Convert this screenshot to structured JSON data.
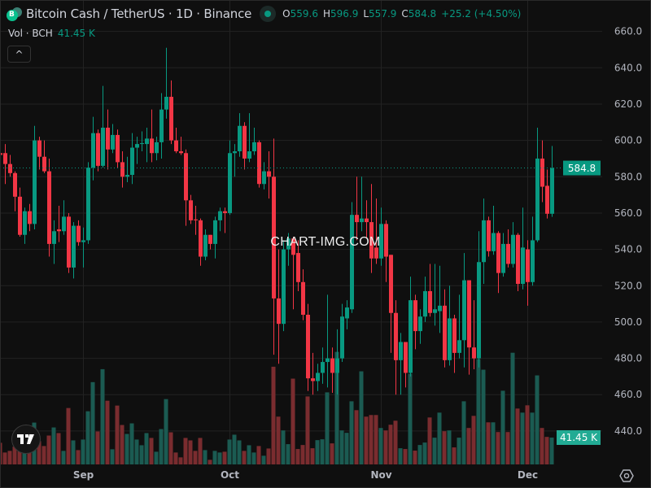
{
  "header": {
    "symbol_title": "Bitcoin Cash / TetherUS · 1D · Binance",
    "o_label": "O",
    "o": "559.6",
    "h_label": "H",
    "h": "596.9",
    "l_label": "L",
    "l": "557.9",
    "c_label": "C",
    "c": "584.8",
    "change": "+25.2 (+4.50%)",
    "volume_label": "Vol · BCH",
    "volume_value": "41.45 K",
    "collapse_icon": "^"
  },
  "watermark": "CHART-IMG.COM",
  "logo_text": "TV",
  "colors": {
    "background": "#0f0f0f",
    "up": "#089981",
    "down": "#f23645",
    "volume_up": "#1b5b52",
    "volume_down": "#7a2c2f",
    "grid": "#222222",
    "axis_text": "#b2b5be"
  },
  "chart_data": {
    "type": "candlestick",
    "interval": "1D",
    "ylim": [
      421.6,
      677.3
    ],
    "y_ticks": [
      "660.0",
      "640.0",
      "620.0",
      "600.0",
      "580.0",
      "560.0",
      "540.0",
      "520.0",
      "500.0",
      "480.0",
      "460.0",
      "440.0"
    ],
    "x_ticks": [
      "Sep",
      "Oct",
      "Nov",
      "Dec"
    ],
    "grid": true,
    "last_price_label": "584.8",
    "last_volume_label": "41.45 K",
    "ohlc": [
      [
        593,
        595,
        590,
        592
      ],
      [
        593,
        598,
        576,
        587
      ],
      [
        587,
        592,
        580,
        582
      ],
      [
        582,
        583,
        561,
        569
      ],
      [
        569,
        574,
        547,
        548
      ],
      [
        548,
        563,
        543,
        561
      ],
      [
        561,
        565,
        550,
        554
      ],
      [
        554,
        608,
        551,
        600
      ],
      [
        600,
        602,
        584,
        591
      ],
      [
        591,
        600,
        582,
        583
      ],
      [
        583,
        590,
        536,
        543
      ],
      [
        543,
        556,
        532,
        550
      ],
      [
        551,
        564,
        544,
        550
      ],
      [
        550,
        567,
        548,
        558
      ],
      [
        558,
        560,
        527,
        530
      ],
      [
        530,
        555,
        524,
        553
      ],
      [
        553,
        556,
        542,
        544
      ],
      [
        544,
        552,
        530,
        545
      ],
      [
        545,
        588,
        543,
        585
      ],
      [
        585,
        613,
        578,
        604
      ],
      [
        604,
        606,
        583,
        586
      ],
      [
        586,
        630,
        585,
        607
      ],
      [
        607,
        617,
        584,
        595
      ],
      [
        595,
        609,
        593,
        603
      ],
      [
        603,
        606,
        585,
        588
      ],
      [
        588,
        594,
        574,
        580
      ],
      [
        580,
        591,
        577,
        581
      ],
      [
        581,
        604,
        576,
        596
      ],
      [
        596,
        602,
        587,
        598
      ],
      [
        598,
        605,
        594,
        598.5
      ],
      [
        598,
        607,
        588,
        601
      ],
      [
        601,
        617,
        588,
        593
      ],
      [
        593,
        602,
        589,
        599
      ],
      [
        599,
        626,
        590,
        617
      ],
      [
        617,
        651,
        612,
        624
      ],
      [
        624,
        633,
        598,
        600
      ],
      [
        600,
        607,
        593,
        594
      ],
      [
        594,
        602,
        592,
        593
      ],
      [
        593,
        595,
        553,
        567
      ],
      [
        567,
        570,
        554,
        556
      ],
      [
        556.5,
        564,
        548,
        556
      ],
      [
        556,
        557,
        531,
        536
      ],
      [
        536,
        551,
        534,
        548
      ],
      [
        548,
        548,
        540,
        543
      ],
      [
        543,
        558,
        535,
        556
      ],
      [
        556,
        563,
        550,
        561
      ],
      [
        561,
        563,
        549,
        560
      ],
      [
        560,
        600,
        559,
        593
      ],
      [
        593,
        598,
        580,
        594
      ],
      [
        594,
        615,
        591,
        608
      ],
      [
        608,
        610,
        584,
        590
      ],
      [
        590,
        615,
        588,
        594
      ],
      [
        594,
        607,
        592,
        599
      ],
      [
        599,
        600,
        574,
        576
      ],
      [
        576,
        588,
        573,
        583
      ],
      [
        583,
        594,
        568,
        580
      ],
      [
        580,
        601,
        482,
        513
      ],
      [
        513,
        540,
        477,
        499
      ],
      [
        499,
        545,
        495,
        540
      ],
      [
        540,
        549,
        531,
        546
      ],
      [
        546,
        547,
        507,
        537
      ],
      [
        538,
        545,
        517,
        522
      ],
      [
        522,
        529,
        501,
        504
      ],
      [
        504,
        510,
        462,
        469
      ],
      [
        469,
        483,
        460,
        467.5
      ],
      [
        467.5,
        477,
        462,
        472
      ],
      [
        472,
        486,
        466,
        478
      ],
      [
        478,
        515,
        464,
        480
      ],
      [
        480,
        486,
        461,
        472
      ],
      [
        472,
        496,
        460,
        480
      ],
      [
        480,
        510,
        478,
        503
      ],
      [
        502,
        512,
        496,
        508
      ],
      [
        507,
        566,
        505,
        559
      ],
      [
        559,
        580,
        545,
        555
      ],
      [
        555,
        580,
        550,
        557
      ],
      [
        557,
        567,
        546,
        555
      ],
      [
        555,
        576,
        527,
        535
      ],
      [
        541,
        568,
        532,
        535
      ],
      [
        535,
        563,
        531,
        554
      ],
      [
        554,
        556,
        522,
        536
      ],
      [
        537,
        537,
        483,
        505
      ],
      [
        505,
        512,
        460,
        479
      ],
      [
        479,
        494,
        460,
        489
      ],
      [
        489,
        489,
        464,
        472
      ],
      [
        472,
        525,
        470,
        512
      ],
      [
        512,
        515,
        485,
        495
      ],
      [
        495,
        507,
        488,
        503
      ],
      [
        503,
        525,
        500,
        517
      ],
      [
        517,
        532,
        503,
        505
      ],
      [
        505,
        532,
        498,
        507
      ],
      [
        506,
        531,
        494,
        509
      ],
      [
        509,
        518,
        475,
        479
      ],
      [
        479,
        520,
        476,
        502
      ],
      [
        502,
        504,
        472,
        483
      ],
      [
        483,
        515,
        480,
        490
      ],
      [
        490,
        538,
        475,
        523
      ],
      [
        523,
        523,
        471,
        486
      ],
      [
        486,
        512,
        474,
        480
      ],
      [
        480,
        550,
        475,
        533
      ],
      [
        533,
        568,
        521,
        556
      ],
      [
        556,
        558,
        536,
        539
      ],
      [
        539,
        564,
        537,
        549
      ],
      [
        549,
        550,
        516,
        527
      ],
      [
        527,
        549,
        525,
        543
      ],
      [
        543,
        551,
        530,
        532
      ],
      [
        532,
        555,
        530,
        548
      ],
      [
        548,
        549,
        517,
        521
      ],
      [
        521,
        563,
        518,
        541
      ],
      [
        540,
        545,
        509,
        522
      ],
      [
        522,
        558,
        520,
        545
      ],
      [
        545,
        607,
        544,
        590
      ],
      [
        590,
        600,
        566,
        574.5
      ],
      [
        575,
        584,
        557,
        559.6
      ],
      [
        559.6,
        596.9,
        557.9,
        584.8
      ]
    ],
    "volume_k": [
      33.4,
      18.4,
      20.9,
      27.5,
      25,
      17.5,
      20.9,
      64.6,
      35.9,
      28.4,
      44.6,
      57.1,
      48.4,
      20.9,
      87.1,
      37.1,
      22.1,
      38.4,
      82.1,
      127.1,
      50.9,
      147.1,
      98.4,
      23.4,
      90.9,
      60.9,
      47.1,
      63.4,
      38.4,
      29.6,
      48.4,
      40.9,
      19.6,
      54.6,
      100.9,
      49.6,
      18.4,
      10.9,
      40.9,
      37.1,
      20.9,
      40.9,
      22.1,
      7.1,
      20.9,
      18.4,
      19.6,
      38.4,
      45.9,
      37.1,
      20.9,
      29.6,
      18.4,
      28.4,
      13.4,
      24.6,
      150.9,
      73.8,
      52.5,
      31.3,
      132.5,
      23.8,
      30,
      105,
      25,
      37.5,
      38.8,
      111.3,
      32.5,
      173.8,
      52.5,
      48.8,
      97.5,
      83.8,
      143.8,
      73.8,
      76.3,
      76.3,
      56.3,
      52.5,
      61.3,
      67.5,
      25,
      23.8,
      140,
      21.3,
      30,
      33.8,
      72.5,
      41.3,
      80,
      51.3,
      52.5,
      26.3,
      41.3,
      97.5,
      56.3,
      75,
      162.5,
      146.3,
      65,
      65,
      50,
      113.8,
      50,
      172.5,
      86.3,
      80,
      91.3,
      80,
      137.5,
      56.3,
      42.5,
      41.45
    ]
  }
}
